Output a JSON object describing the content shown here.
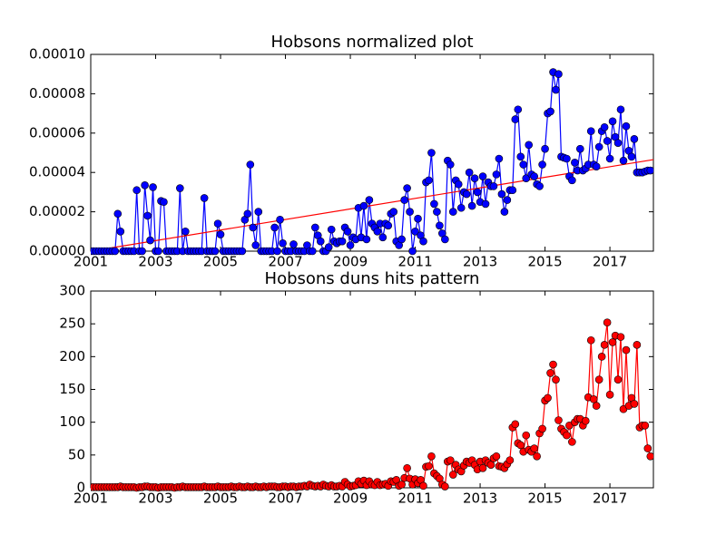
{
  "chart_data": [
    {
      "type": "line",
      "title": "Hobsons normalized plot",
      "xlim": [
        2001,
        2018.34
      ],
      "xticks": [
        2001,
        2003,
        2005,
        2007,
        2009,
        2011,
        2013,
        2015,
        2017
      ],
      "ylim": [
        0,
        0.0001
      ],
      "yticks": [
        {
          "value": 0,
          "label": "0.00000"
        },
        {
          "value": 2e-05,
          "label": "0.00002"
        },
        {
          "value": 4e-05,
          "label": "0.00004"
        },
        {
          "value": 6e-05,
          "label": "0.00006"
        },
        {
          "value": 8e-05,
          "label": "0.00008"
        },
        {
          "value": 0.0001,
          "label": "0.00010"
        }
      ],
      "x": [
        2001,
        2001.083,
        2001.167,
        2001.25,
        2001.333,
        2001.417,
        2001.5,
        2001.583,
        2001.667,
        2001.75,
        2001.833,
        2001.917,
        2002,
        2002.083,
        2002.167,
        2002.25,
        2002.333,
        2002.417,
        2002.5,
        2002.583,
        2002.667,
        2002.75,
        2002.833,
        2002.917,
        2003,
        2003.083,
        2003.167,
        2003.25,
        2003.333,
        2003.417,
        2003.5,
        2003.583,
        2003.667,
        2003.75,
        2003.833,
        2003.917,
        2004,
        2004.083,
        2004.167,
        2004.25,
        2004.333,
        2004.417,
        2004.5,
        2004.583,
        2004.667,
        2004.75,
        2004.833,
        2004.917,
        2005,
        2005.083,
        2005.167,
        2005.25,
        2005.333,
        2005.417,
        2005.5,
        2005.583,
        2005.667,
        2005.75,
        2005.833,
        2005.917,
        2006,
        2006.083,
        2006.167,
        2006.25,
        2006.333,
        2006.417,
        2006.5,
        2006.583,
        2006.667,
        2006.75,
        2006.833,
        2006.917,
        2007,
        2007.083,
        2007.167,
        2007.25,
        2007.333,
        2007.417,
        2007.5,
        2007.583,
        2007.667,
        2007.75,
        2007.833,
        2007.917,
        2008,
        2008.083,
        2008.167,
        2008.25,
        2008.333,
        2008.417,
        2008.5,
        2008.583,
        2008.667,
        2008.75,
        2008.833,
        2008.917,
        2009,
        2009.083,
        2009.167,
        2009.25,
        2009.333,
        2009.417,
        2009.5,
        2009.583,
        2009.667,
        2009.75,
        2009.833,
        2009.917,
        2010,
        2010.083,
        2010.167,
        2010.25,
        2010.333,
        2010.417,
        2010.5,
        2010.583,
        2010.667,
        2010.75,
        2010.833,
        2010.917,
        2011,
        2011.083,
        2011.167,
        2011.25,
        2011.333,
        2011.417,
        2011.5,
        2011.583,
        2011.667,
        2011.75,
        2011.833,
        2011.917,
        2012,
        2012.083,
        2012.167,
        2012.25,
        2012.333,
        2012.417,
        2012.5,
        2012.583,
        2012.667,
        2012.75,
        2012.833,
        2012.917,
        2013,
        2013.083,
        2013.167,
        2013.25,
        2013.333,
        2013.417,
        2013.5,
        2013.583,
        2013.667,
        2013.75,
        2013.833,
        2013.917,
        2014,
        2014.083,
        2014.167,
        2014.25,
        2014.333,
        2014.417,
        2014.5,
        2014.583,
        2014.667,
        2014.75,
        2014.833,
        2014.917,
        2015,
        2015.083,
        2015.167,
        2015.25,
        2015.333,
        2015.417,
        2015.5,
        2015.583,
        2015.667,
        2015.75,
        2015.833,
        2015.917,
        2016,
        2016.083,
        2016.167,
        2016.25,
        2016.333,
        2016.417,
        2016.5,
        2016.583,
        2016.667,
        2016.75,
        2016.833,
        2016.917,
        2017,
        2017.083,
        2017.167,
        2017.25,
        2017.333,
        2017.417,
        2017.5,
        2017.583,
        2017.667,
        2017.75,
        2017.833,
        2017.917,
        2018,
        2018.083,
        2018.167,
        2018.25
      ],
      "series": [
        {
          "color": "#0000ff",
          "values": [
            0,
            0,
            0,
            0,
            0,
            0,
            0,
            0,
            0,
            0,
            1.9e-05,
            1e-05,
            0,
            0,
            0,
            0,
            0,
            3.1e-05,
            0,
            0,
            3.35e-05,
            1.8e-05,
            5.5e-06,
            3.25e-05,
            0,
            0,
            2.55e-05,
            2.5e-05,
            0,
            0,
            0,
            0,
            0,
            3.2e-05,
            0,
            1e-05,
            0,
            0,
            0,
            0,
            0,
            0,
            2.7e-05,
            0,
            0,
            0,
            0,
            1.4e-05,
            8.5e-06,
            0,
            0,
            0,
            0,
            0,
            0,
            0,
            0,
            1.6e-05,
            1.9e-05,
            4.4e-05,
            1.2e-05,
            3e-06,
            2e-05,
            0,
            0,
            0,
            0,
            0,
            1.2e-05,
            0,
            1.6e-05,
            4e-06,
            0,
            0,
            0,
            3.5e-06,
            0,
            0,
            0,
            0,
            3e-06,
            0,
            0,
            1.2e-05,
            8e-06,
            5e-06,
            0,
            0,
            2e-06,
            1.1e-05,
            5e-06,
            4e-06,
            5e-06,
            5e-06,
            1.2e-05,
            1e-05,
            3e-06,
            7e-06,
            6e-06,
            2.2e-05,
            7e-06,
            2.3e-05,
            6e-06,
            2.6e-05,
            1.4e-05,
            1.2e-05,
            1e-05,
            1.4e-05,
            7e-06,
            1.4e-05,
            1.3e-05,
            1.9e-05,
            2e-05,
            5e-06,
            3e-06,
            6e-06,
            2.6e-05,
            3.2e-05,
            2e-05,
            0,
            1e-05,
            1.65e-05,
            8e-06,
            5e-06,
            3.5e-05,
            3.6e-05,
            5e-05,
            2.4e-05,
            2e-05,
            1.3e-05,
            9e-06,
            6e-06,
            4.6e-05,
            4.4e-05,
            2e-05,
            3.6e-05,
            3.4e-05,
            2.2e-05,
            3e-05,
            2.9e-05,
            4e-05,
            2.3e-05,
            3.7e-05,
            3e-05,
            2.5e-05,
            3.8e-05,
            2.4e-05,
            3.5e-05,
            3.3e-05,
            3.3e-05,
            3.9e-05,
            4.7e-05,
            2.9e-05,
            2e-05,
            2.6e-05,
            3.1e-05,
            3.1e-05,
            6.7e-05,
            7.2e-05,
            4.8e-05,
            4.4e-05,
            3.7e-05,
            5.4e-05,
            3.9e-05,
            3.8e-05,
            3.4e-05,
            3.3e-05,
            4.4e-05,
            5.2e-05,
            7e-05,
            7.1e-05,
            9.1e-05,
            8.2e-05,
            9e-05,
            4.8e-05,
            4.75e-05,
            4.7e-05,
            3.8e-05,
            3.6e-05,
            4.5e-05,
            4.1e-05,
            5.2e-05,
            4.1e-05,
            4.2e-05,
            4.4e-05,
            6.1e-05,
            4.4e-05,
            4.3e-05,
            5.3e-05,
            6.1e-05,
            6.3e-05,
            5.6e-05,
            4.7e-05,
            6.6e-05,
            5.8e-05,
            5.5e-05,
            7.2e-05,
            4.6e-05,
            6.35e-05,
            5.1e-05,
            4.8e-05,
            5.7e-05,
            4e-05,
            4e-05,
            4e-05,
            4.05e-05,
            4.1e-05,
            4.1e-05
          ]
        }
      ],
      "trend": {
        "color": "#ff0000",
        "x": [
          2001,
          2018.34
        ],
        "values": [
          0,
          4.65e-05
        ]
      }
    },
    {
      "type": "line",
      "title": "Hobsons duns hits pattern",
      "xlim": [
        2001,
        2018.34
      ],
      "xticks": [
        2001,
        2003,
        2005,
        2007,
        2009,
        2011,
        2013,
        2015,
        2017
      ],
      "ylim": [
        0,
        300
      ],
      "yticks": [
        0,
        50,
        100,
        150,
        200,
        250,
        300
      ],
      "x": [
        2001,
        2001.083,
        2001.167,
        2001.25,
        2001.333,
        2001.417,
        2001.5,
        2001.583,
        2001.667,
        2001.75,
        2001.833,
        2001.917,
        2002,
        2002.083,
        2002.167,
        2002.25,
        2002.333,
        2002.417,
        2002.5,
        2002.583,
        2002.667,
        2002.75,
        2002.833,
        2002.917,
        2003,
        2003.083,
        2003.167,
        2003.25,
        2003.333,
        2003.417,
        2003.5,
        2003.583,
        2003.667,
        2003.75,
        2003.833,
        2003.917,
        2004,
        2004.083,
        2004.167,
        2004.25,
        2004.333,
        2004.417,
        2004.5,
        2004.583,
        2004.667,
        2004.75,
        2004.833,
        2004.917,
        2005,
        2005.083,
        2005.167,
        2005.25,
        2005.333,
        2005.417,
        2005.5,
        2005.583,
        2005.667,
        2005.75,
        2005.833,
        2005.917,
        2006,
        2006.083,
        2006.167,
        2006.25,
        2006.333,
        2006.417,
        2006.5,
        2006.583,
        2006.667,
        2006.75,
        2006.833,
        2006.917,
        2007,
        2007.083,
        2007.167,
        2007.25,
        2007.333,
        2007.417,
        2007.5,
        2007.583,
        2007.667,
        2007.75,
        2007.833,
        2007.917,
        2008,
        2008.083,
        2008.167,
        2008.25,
        2008.333,
        2008.417,
        2008.5,
        2008.583,
        2008.667,
        2008.75,
        2008.833,
        2008.917,
        2009,
        2009.083,
        2009.167,
        2009.25,
        2009.333,
        2009.417,
        2009.5,
        2009.583,
        2009.667,
        2009.75,
        2009.833,
        2009.917,
        2010,
        2010.083,
        2010.167,
        2010.25,
        2010.333,
        2010.417,
        2010.5,
        2010.583,
        2010.667,
        2010.75,
        2010.833,
        2010.917,
        2011,
        2011.083,
        2011.167,
        2011.25,
        2011.333,
        2011.417,
        2011.5,
        2011.583,
        2011.667,
        2011.75,
        2011.833,
        2011.917,
        2012,
        2012.083,
        2012.167,
        2012.25,
        2012.333,
        2012.417,
        2012.5,
        2012.583,
        2012.667,
        2012.75,
        2012.833,
        2012.917,
        2013,
        2013.083,
        2013.167,
        2013.25,
        2013.333,
        2013.417,
        2013.5,
        2013.583,
        2013.667,
        2013.75,
        2013.833,
        2013.917,
        2014,
        2014.083,
        2014.167,
        2014.25,
        2014.333,
        2014.417,
        2014.5,
        2014.583,
        2014.667,
        2014.75,
        2014.833,
        2014.917,
        2015,
        2015.083,
        2015.167,
        2015.25,
        2015.333,
        2015.417,
        2015.5,
        2015.583,
        2015.667,
        2015.75,
        2015.833,
        2015.917,
        2016,
        2016.083,
        2016.167,
        2016.25,
        2016.333,
        2016.417,
        2016.5,
        2016.583,
        2016.667,
        2016.75,
        2016.833,
        2016.917,
        2017,
        2017.083,
        2017.167,
        2017.25,
        2017.333,
        2017.417,
        2017.5,
        2017.583,
        2017.667,
        2017.75,
        2017.833,
        2017.917,
        2018,
        2018.083,
        2018.167,
        2018.25
      ],
      "series": [
        {
          "color": "#ff0000",
          "values": [
            1,
            1,
            1,
            1,
            1,
            1,
            1,
            1,
            1,
            1,
            1,
            2,
            1,
            1,
            1,
            1,
            1,
            0,
            1,
            1,
            2,
            2,
            1,
            1,
            1,
            0,
            1,
            1,
            1,
            1,
            1,
            0,
            1,
            1,
            2,
            1,
            1,
            1,
            1,
            1,
            1,
            1,
            2,
            1,
            1,
            1,
            1,
            2,
            1,
            1,
            1,
            1,
            2,
            1,
            1,
            2,
            1,
            1,
            2,
            1,
            1,
            2,
            1,
            1,
            2,
            1,
            2,
            2,
            2,
            1,
            1,
            2,
            2,
            1,
            2,
            2,
            1,
            2,
            2,
            3,
            2,
            5,
            3,
            2,
            3,
            2,
            5,
            3,
            2,
            4,
            2,
            2,
            3,
            2,
            9,
            5,
            2,
            3,
            4,
            10,
            6,
            11,
            4,
            10,
            5,
            4,
            9,
            4,
            5,
            6,
            3,
            10,
            9,
            12,
            3,
            5,
            15,
            30,
            14,
            5,
            13,
            7,
            12,
            3,
            32,
            33,
            48,
            22,
            18,
            14,
            5,
            2,
            40,
            42,
            20,
            35,
            28,
            25,
            34,
            40,
            38,
            42,
            35,
            28,
            40,
            30,
            42,
            38,
            35,
            45,
            48,
            33,
            32,
            30,
            36,
            42,
            92,
            97,
            68,
            65,
            55,
            80,
            58,
            55,
            60,
            48,
            83,
            90,
            133,
            137,
            175,
            188,
            165,
            103,
            90,
            85,
            80,
            95,
            70,
            100,
            105,
            105,
            95,
            102,
            138,
            225,
            135,
            125,
            165,
            200,
            218,
            252,
            142,
            222,
            232,
            165,
            230,
            120,
            210,
            125,
            137,
            128,
            218,
            92,
            95,
            95,
            60,
            48
          ]
        }
      ]
    }
  ]
}
